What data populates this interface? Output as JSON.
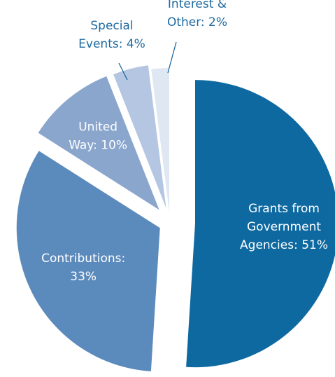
{
  "chart_data": {
    "type": "pie",
    "title": "",
    "exploded": true,
    "start_angle": "12 o'clock",
    "direction": "clockwise",
    "slices": [
      {
        "label_lines": [
          "Grants from",
          "Government",
          "Agencies: 51%"
        ],
        "value": 51,
        "color": "#0e69a1",
        "label_color": "#ffffff",
        "label_placement": "inside"
      },
      {
        "label_lines": [
          "Contributions:",
          "33%"
        ],
        "value": 33,
        "color": "#5b8abc",
        "label_color": "#ffffff",
        "label_placement": "inside"
      },
      {
        "label_lines": [
          "United",
          "Way: 10%"
        ],
        "value": 10,
        "color": "#8aa6cd",
        "label_color": "#ffffff",
        "label_placement": "inside"
      },
      {
        "label_lines": [
          "Special",
          "Events: 4%"
        ],
        "value": 4,
        "color": "#b4c6e1",
        "label_color": "#1e6aa0",
        "label_placement": "outside"
      },
      {
        "label_lines": [
          "Interest &",
          "Other: 2%"
        ],
        "value": 2,
        "color": "#dfe7f2",
        "label_color": "#1e6aa0",
        "label_placement": "outside"
      }
    ],
    "leader_line_color": "#1e6aa0"
  }
}
